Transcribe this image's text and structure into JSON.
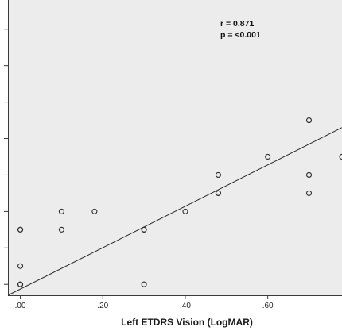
{
  "chart_data": {
    "type": "scatter",
    "title": "",
    "xlabel": "Left ETDRS Vision (LogMAR)",
    "ylabel": "",
    "xlim": [
      -0.03,
      0.78
    ],
    "ylim": [
      0.07,
      0.88
    ],
    "x_ticks": [
      0.0,
      0.2,
      0.4,
      0.6
    ],
    "x_tick_labels": [
      ".00",
      ".20",
      ".40",
      ".60"
    ],
    "y_ticks": [
      0.1,
      0.2,
      0.3,
      0.4,
      0.5,
      0.6,
      0.7,
      0.8
    ],
    "grid": false,
    "background_color": "#ececec",
    "point_color": "#2b2b2b",
    "line_color": "#2b2b2b",
    "points": [
      {
        "x": 0.0,
        "y": 0.1
      },
      {
        "x": 0.0,
        "y": 0.1
      },
      {
        "x": 0.0,
        "y": 0.15
      },
      {
        "x": 0.0,
        "y": 0.25
      },
      {
        "x": 0.0,
        "y": 0.25
      },
      {
        "x": 0.1,
        "y": 0.25
      },
      {
        "x": 0.1,
        "y": 0.3
      },
      {
        "x": 0.18,
        "y": 0.3
      },
      {
        "x": 0.3,
        "y": 0.1
      },
      {
        "x": 0.3,
        "y": 0.25
      },
      {
        "x": 0.3,
        "y": 0.25
      },
      {
        "x": 0.4,
        "y": 0.3
      },
      {
        "x": 0.48,
        "y": 0.35
      },
      {
        "x": 0.48,
        "y": 0.35
      },
      {
        "x": 0.48,
        "y": 0.4
      },
      {
        "x": 0.6,
        "y": 0.45
      },
      {
        "x": 0.7,
        "y": 0.35
      },
      {
        "x": 0.7,
        "y": 0.4
      },
      {
        "x": 0.7,
        "y": 0.55
      },
      {
        "x": 0.78,
        "y": 0.45
      }
    ],
    "fit_line": {
      "x": [
        -0.03,
        0.78
      ],
      "y": [
        0.07,
        0.53
      ]
    },
    "annotations": {
      "r": "r = 0.871",
      "p": "p = <0.001"
    }
  }
}
